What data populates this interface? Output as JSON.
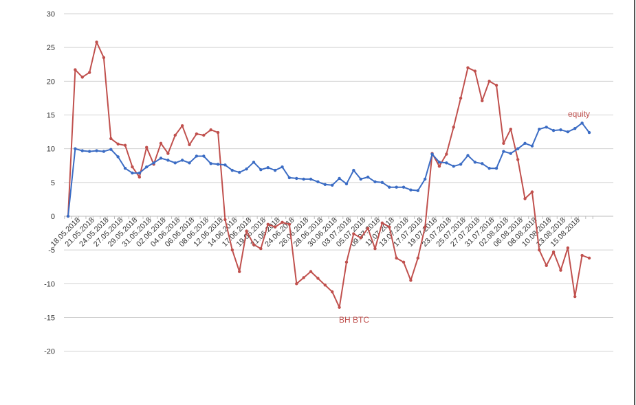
{
  "chart_data": {
    "type": "line",
    "title": "",
    "xlabel": "",
    "ylabel": "",
    "ylim": [
      -20,
      30
    ],
    "yticks": [
      -20,
      -15,
      -10,
      -5,
      0,
      5,
      10,
      15,
      20,
      25,
      30
    ],
    "grid": true,
    "xtick_labels": [
      "18.05.2018",
      "21.05.2018",
      "24.05.2018",
      "27.05.2018",
      "29.05.2018",
      "31.05.2018",
      "02.06.2018",
      "04.06.2018",
      "06.06.2018",
      "08.06.2018",
      "12.06.2018",
      "14.06.2018",
      "17.06.2018",
      "19.06.2018",
      "21.06.2018",
      "24.06.2018",
      "26.06.2018",
      "28.06.2018",
      "30.06.2018",
      "03.07.2018",
      "05.07.2018",
      "09.07.2018",
      "11.07.2018",
      "13.07.2018",
      "17.07.2018",
      "19.07.2018",
      "23.07.2018",
      "25.07.2018",
      "27.07.2018",
      "31.07.2018",
      "02.08.2018",
      "06.08.2018",
      "08.08.2018",
      "10.08.2018",
      "13.08.2018",
      "15.08.2018"
    ],
    "series": [
      {
        "name": "equity",
        "color": "#3b6cc4",
        "values": [
          0,
          10,
          9.7,
          9.6,
          9.7,
          9.6,
          9.9,
          8.8,
          7.1,
          6.4,
          6.4,
          7.3,
          7.9,
          8.6,
          8.3,
          7.9,
          8.3,
          7.9,
          8.9,
          8.9,
          7.8,
          7.7,
          7.6,
          6.8,
          6.5,
          7,
          8,
          6.9,
          7.2,
          6.8,
          7.3,
          5.7,
          5.6,
          5.5,
          5.5,
          5.1,
          4.7,
          4.6,
          5.6,
          4.8,
          6.8,
          5.5,
          5.8,
          5.1,
          5,
          4.3,
          4.3,
          4.3,
          3.9,
          3.8,
          5.5,
          9.2,
          8,
          7.9,
          7.4,
          7.7,
          9,
          8,
          7.8,
          7.1,
          7.1,
          9.6,
          9.3,
          10,
          10.8,
          10.4,
          12.9,
          13.2,
          12.7,
          12.8,
          12.5,
          13,
          13.8,
          12.4
        ]
      },
      {
        "name": "BH BTC",
        "color": "#c0504d",
        "values": [
          0,
          21.7,
          20.6,
          21.3,
          25.8,
          23.5,
          11.5,
          10.7,
          10.5,
          7.3,
          5.8,
          10.2,
          7.7,
          10.8,
          9.3,
          12.0,
          13.4,
          10.6,
          12.2,
          12.0,
          12.8,
          12.4,
          -0.5,
          -5,
          -8.2,
          -2.2,
          -4.2,
          -4.8,
          -1.2,
          -1.6,
          -0.9,
          -1.2,
          -10,
          -9.1,
          -8.2,
          -9.2,
          -10.2,
          -11.2,
          -13.5,
          -6.8,
          -2.6,
          -3.2,
          -1.8,
          -4.8,
          -1,
          -1.6,
          -6.2,
          -6.8,
          -9.5,
          -6.2,
          -1.6,
          9.3,
          7.4,
          9.2,
          13.2,
          17.5,
          22,
          21.5,
          17.1,
          20,
          19.4,
          10.8,
          12.9,
          8.4,
          2.6,
          3.6,
          -5,
          -7.3,
          -5.3,
          -8,
          -4.7,
          -11.9,
          -5.8,
          -6.2
        ]
      }
    ],
    "annotations": [
      "equity",
      "BH BTC"
    ]
  }
}
